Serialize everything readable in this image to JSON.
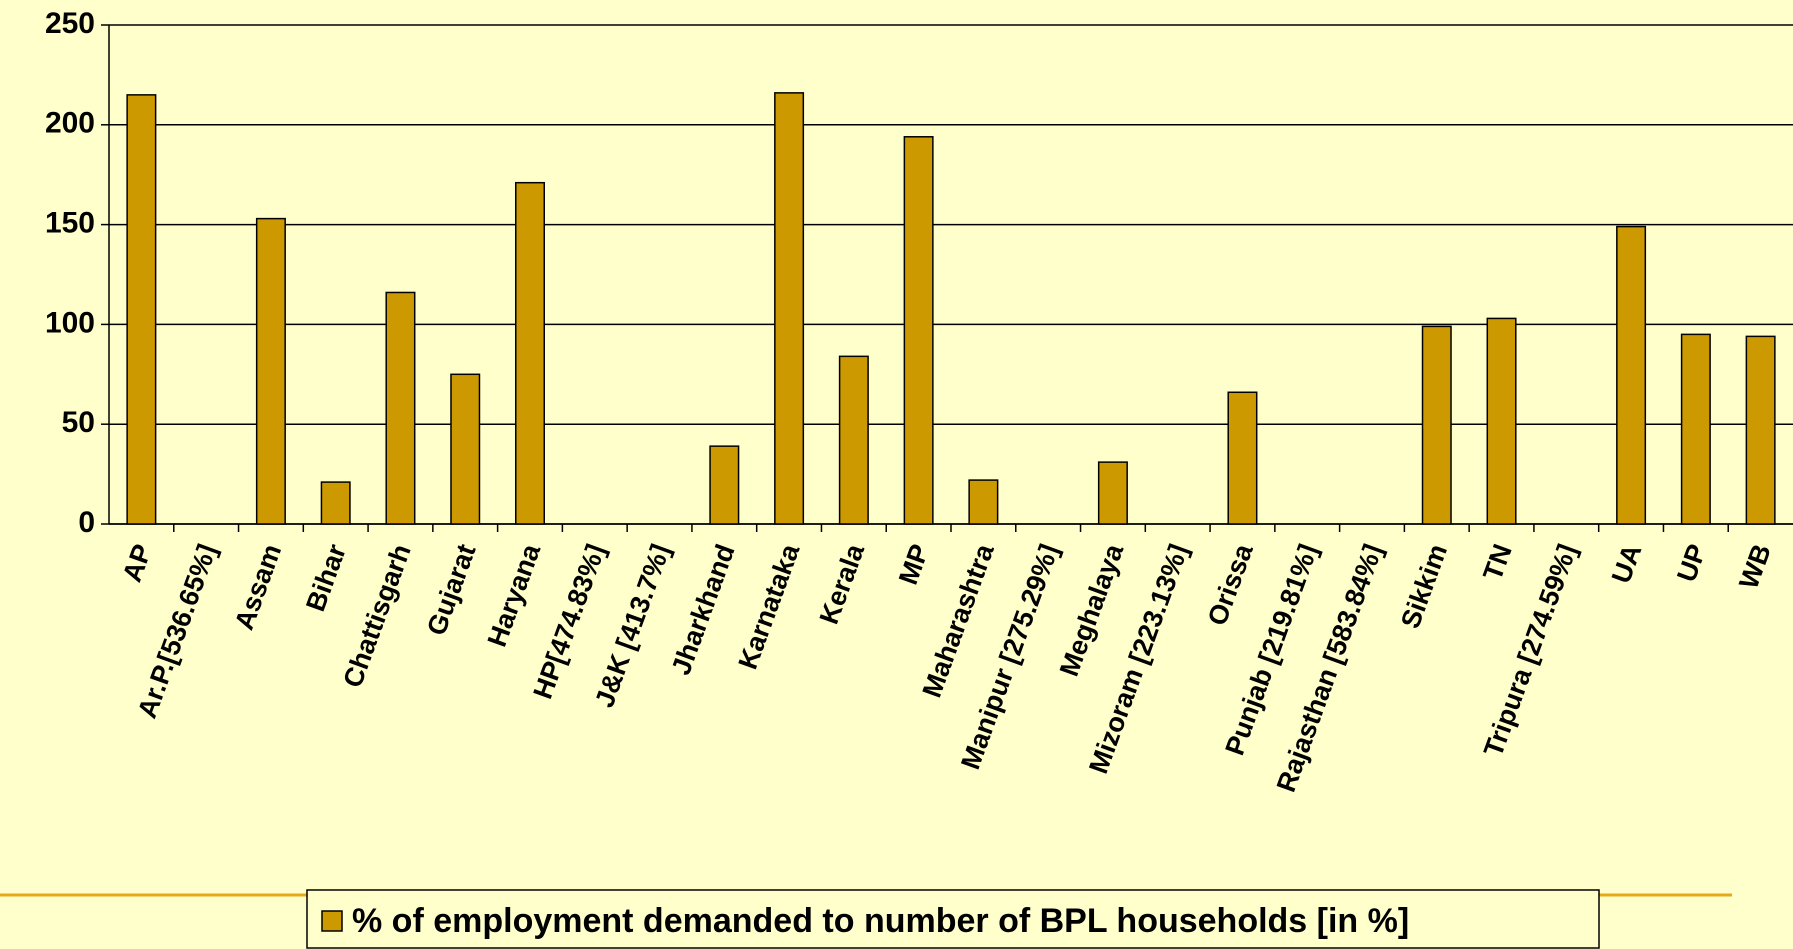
{
  "chart_data": {
    "type": "bar",
    "categories": [
      "AP",
      "Ar.P.[536.65%]",
      "Assam",
      "Bihar",
      "Chattisgarh",
      "Gujarat",
      "Haryana",
      "HP[474.83%]",
      "J&K [413.7%]",
      "Jharkhand",
      "Karnataka",
      "Kerala",
      "MP",
      "Maharashtra",
      "Manipur [275.29%]",
      "Meghalaya",
      "Mizoram [223.13%]",
      "Orissa",
      "Punjab [219.81%]",
      "Rajasthan [583.84%]",
      "Sikkim",
      "TN",
      "Tripura [274.59%]",
      "UA",
      "UP",
      "WB"
    ],
    "series": [
      {
        "name": "% of employment demanded to number of BPL households [in %]",
        "color": "#cc9900",
        "values": [
          215,
          null,
          153,
          21,
          116,
          75,
          171,
          null,
          null,
          39,
          216,
          84,
          194,
          22,
          null,
          31,
          null,
          66,
          null,
          null,
          99,
          103,
          null,
          149,
          95,
          94
        ]
      }
    ],
    "ylim": [
      0,
      250
    ],
    "yticks": [
      0,
      50,
      100,
      150,
      200,
      250
    ],
    "grid": true,
    "legend": "bottom"
  }
}
